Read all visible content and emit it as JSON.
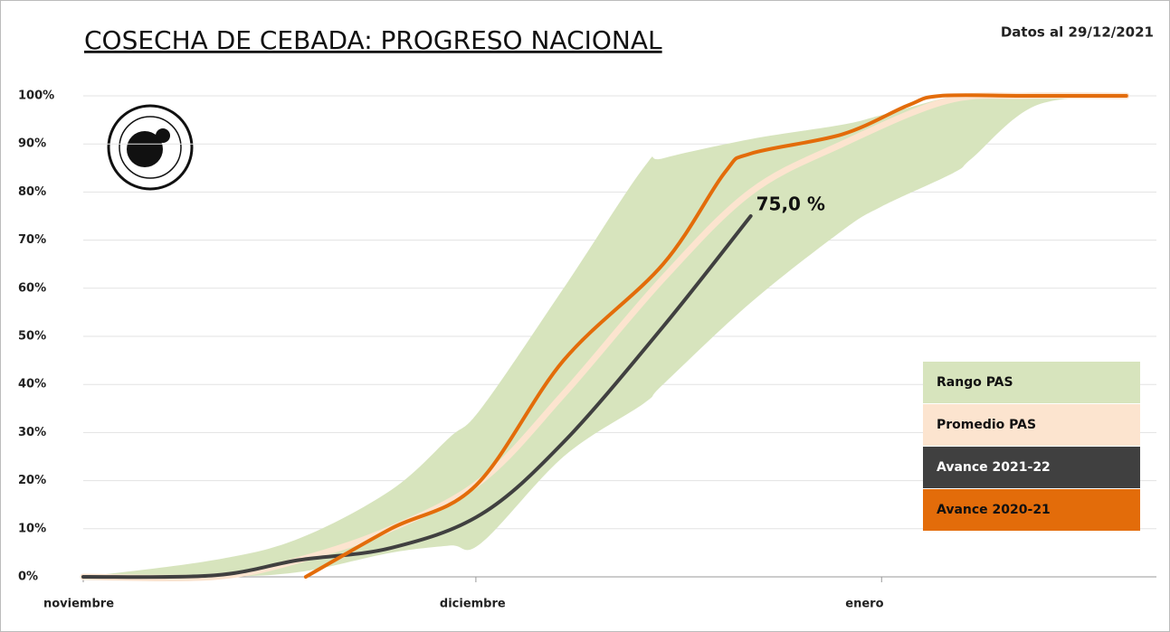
{
  "chart_data": {
    "type": "line",
    "title": "COSECHA DE CEBADA: PROGRESO NACIONAL",
    "subtitle": "Datos al 29/12/2021",
    "xlim": [
      0,
      82
    ],
    "xticks": [
      {
        "value": 0,
        "label": "noviembre"
      },
      {
        "value": 30,
        "label": "diciembre"
      },
      {
        "value": 61,
        "label": "enero"
      }
    ],
    "ylim": [
      0,
      100
    ],
    "yticks": [
      {
        "value": 0,
        "label": "0%"
      },
      {
        "value": 10,
        "label": "10%"
      },
      {
        "value": 20,
        "label": "20%"
      },
      {
        "value": 30,
        "label": "30%"
      },
      {
        "value": 40,
        "label": "40%"
      },
      {
        "value": 50,
        "label": "50%"
      },
      {
        "value": 60,
        "label": "60%"
      },
      {
        "value": 70,
        "label": "70%"
      },
      {
        "value": 80,
        "label": "80%"
      },
      {
        "value": 90,
        "label": "90%"
      },
      {
        "value": 100,
        "label": "100%"
      }
    ],
    "grid": true,
    "range": {
      "name": "Rango PAS",
      "color": "#d7e4bd",
      "x": [
        0,
        10,
        16.5,
        23.5,
        28,
        30.4,
        36.7,
        42.8,
        44.3,
        51,
        58,
        61,
        66.5,
        67.9,
        72.8,
        79.7
      ],
      "high": [
        0,
        3.5,
        8,
        18,
        29,
        35,
        60,
        85,
        87,
        91,
        94,
        96,
        100,
        100,
        100,
        100
      ],
      "low": [
        0,
        0,
        1,
        5,
        6.5,
        7,
        25,
        36,
        40,
        57,
        72,
        77,
        84,
        87,
        98,
        100
      ]
    },
    "series": [
      {
        "name": "Promedio PAS",
        "color": "#fce4cf",
        "width": 7,
        "x": [
          0,
          10,
          16.5,
          23.5,
          30.4,
          36.7,
          44.3,
          51,
          58,
          66,
          72,
          79.7
        ],
        "values": [
          0,
          0,
          3.5,
          10,
          20,
          38,
          62,
          80,
          90,
          99,
          100,
          100
        ]
      },
      {
        "name": "Avance 2021-22",
        "color": "#404040",
        "width": 4,
        "x": [
          0,
          10,
          16.5,
          23.5,
          30.4,
          36.7,
          44.3,
          51
        ],
        "values": [
          0,
          0.3,
          3.5,
          6,
          13,
          28,
          52,
          75
        ],
        "annotation": "75,0 %"
      },
      {
        "name": "Avance 2020-21",
        "color": "#e36c0a",
        "width": 4,
        "x": [
          17,
          23.5,
          30,
          36.7,
          44.3,
          49,
          51,
          58,
          63,
          65.5,
          72,
          79.7
        ],
        "values": [
          0,
          10,
          19,
          45,
          65,
          84,
          88,
          92,
          98,
          100,
          100,
          100
        ]
      }
    ]
  }
}
